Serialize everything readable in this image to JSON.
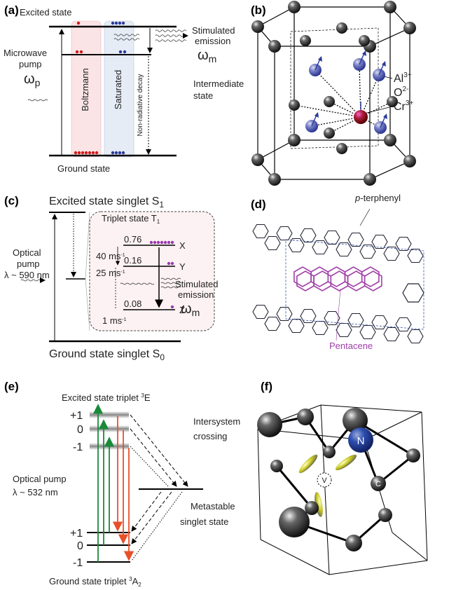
{
  "panel_a": {
    "label": "(a)",
    "excited": "Excited state",
    "emission": [
      "Stimulated",
      "emission"
    ],
    "emission_symbol": [
      "ω",
      "m"
    ],
    "pump": [
      "Microwave",
      "pump"
    ],
    "pump_symbol": [
      "ω",
      "p"
    ],
    "boltzmann": "Boltzmann",
    "saturated": "Saturated",
    "intermediate": [
      "Intermediate",
      "state"
    ],
    "decay": "Non-radiative decay",
    "ground": "Ground state"
  },
  "panel_b": {
    "label": "(b)",
    "ions": [
      [
        "Al",
        "3+"
      ],
      [
        "O",
        "2-"
      ],
      [
        "Cr",
        "3+"
      ]
    ]
  },
  "panel_c": {
    "label": "(c)",
    "excited": [
      "Excited state singlet S",
      "1"
    ],
    "triplet": [
      "Triplet state T",
      "1"
    ],
    "pump": [
      "Optical",
      "pump",
      "λ ~ 590 nm"
    ],
    "levels": [
      {
        "pop": "0.76",
        "name": "X"
      },
      {
        "pop": "0.16",
        "name": "Y"
      },
      {
        "pop": "0.08",
        "name": "Z"
      }
    ],
    "rates": [
      [
        "40 ms",
        "-1"
      ],
      [
        "25 ms",
        "-1"
      ],
      [
        "1 ms",
        "-1"
      ]
    ],
    "emission": [
      "Stimulated",
      "emission"
    ],
    "emission_symbol": [
      "ω",
      "m"
    ],
    "ground": [
      "Ground state singlet S",
      "0"
    ]
  },
  "panel_d": {
    "label": "(d)",
    "host": [
      "p",
      "-terphenyl"
    ],
    "guest": "Pentacene"
  },
  "panel_e": {
    "label": "(e)",
    "excited": [
      "Excited state triplet ",
      "3",
      "E"
    ],
    "upper_levels": [
      "+1",
      "0",
      "-1"
    ],
    "crossing": [
      "Intersystem",
      "crossing"
    ],
    "pump": [
      "Optical pump",
      "λ ~ 532 nm"
    ],
    "metastable": [
      "Metastable",
      "singlet state"
    ],
    "lower_levels": [
      "+1",
      "0",
      "-1"
    ],
    "ground": [
      "Ground state triplet ",
      "3",
      "A",
      "2"
    ]
  },
  "panel_f": {
    "label": "(f)",
    "atoms": [
      "N",
      "V",
      "C"
    ]
  }
}
